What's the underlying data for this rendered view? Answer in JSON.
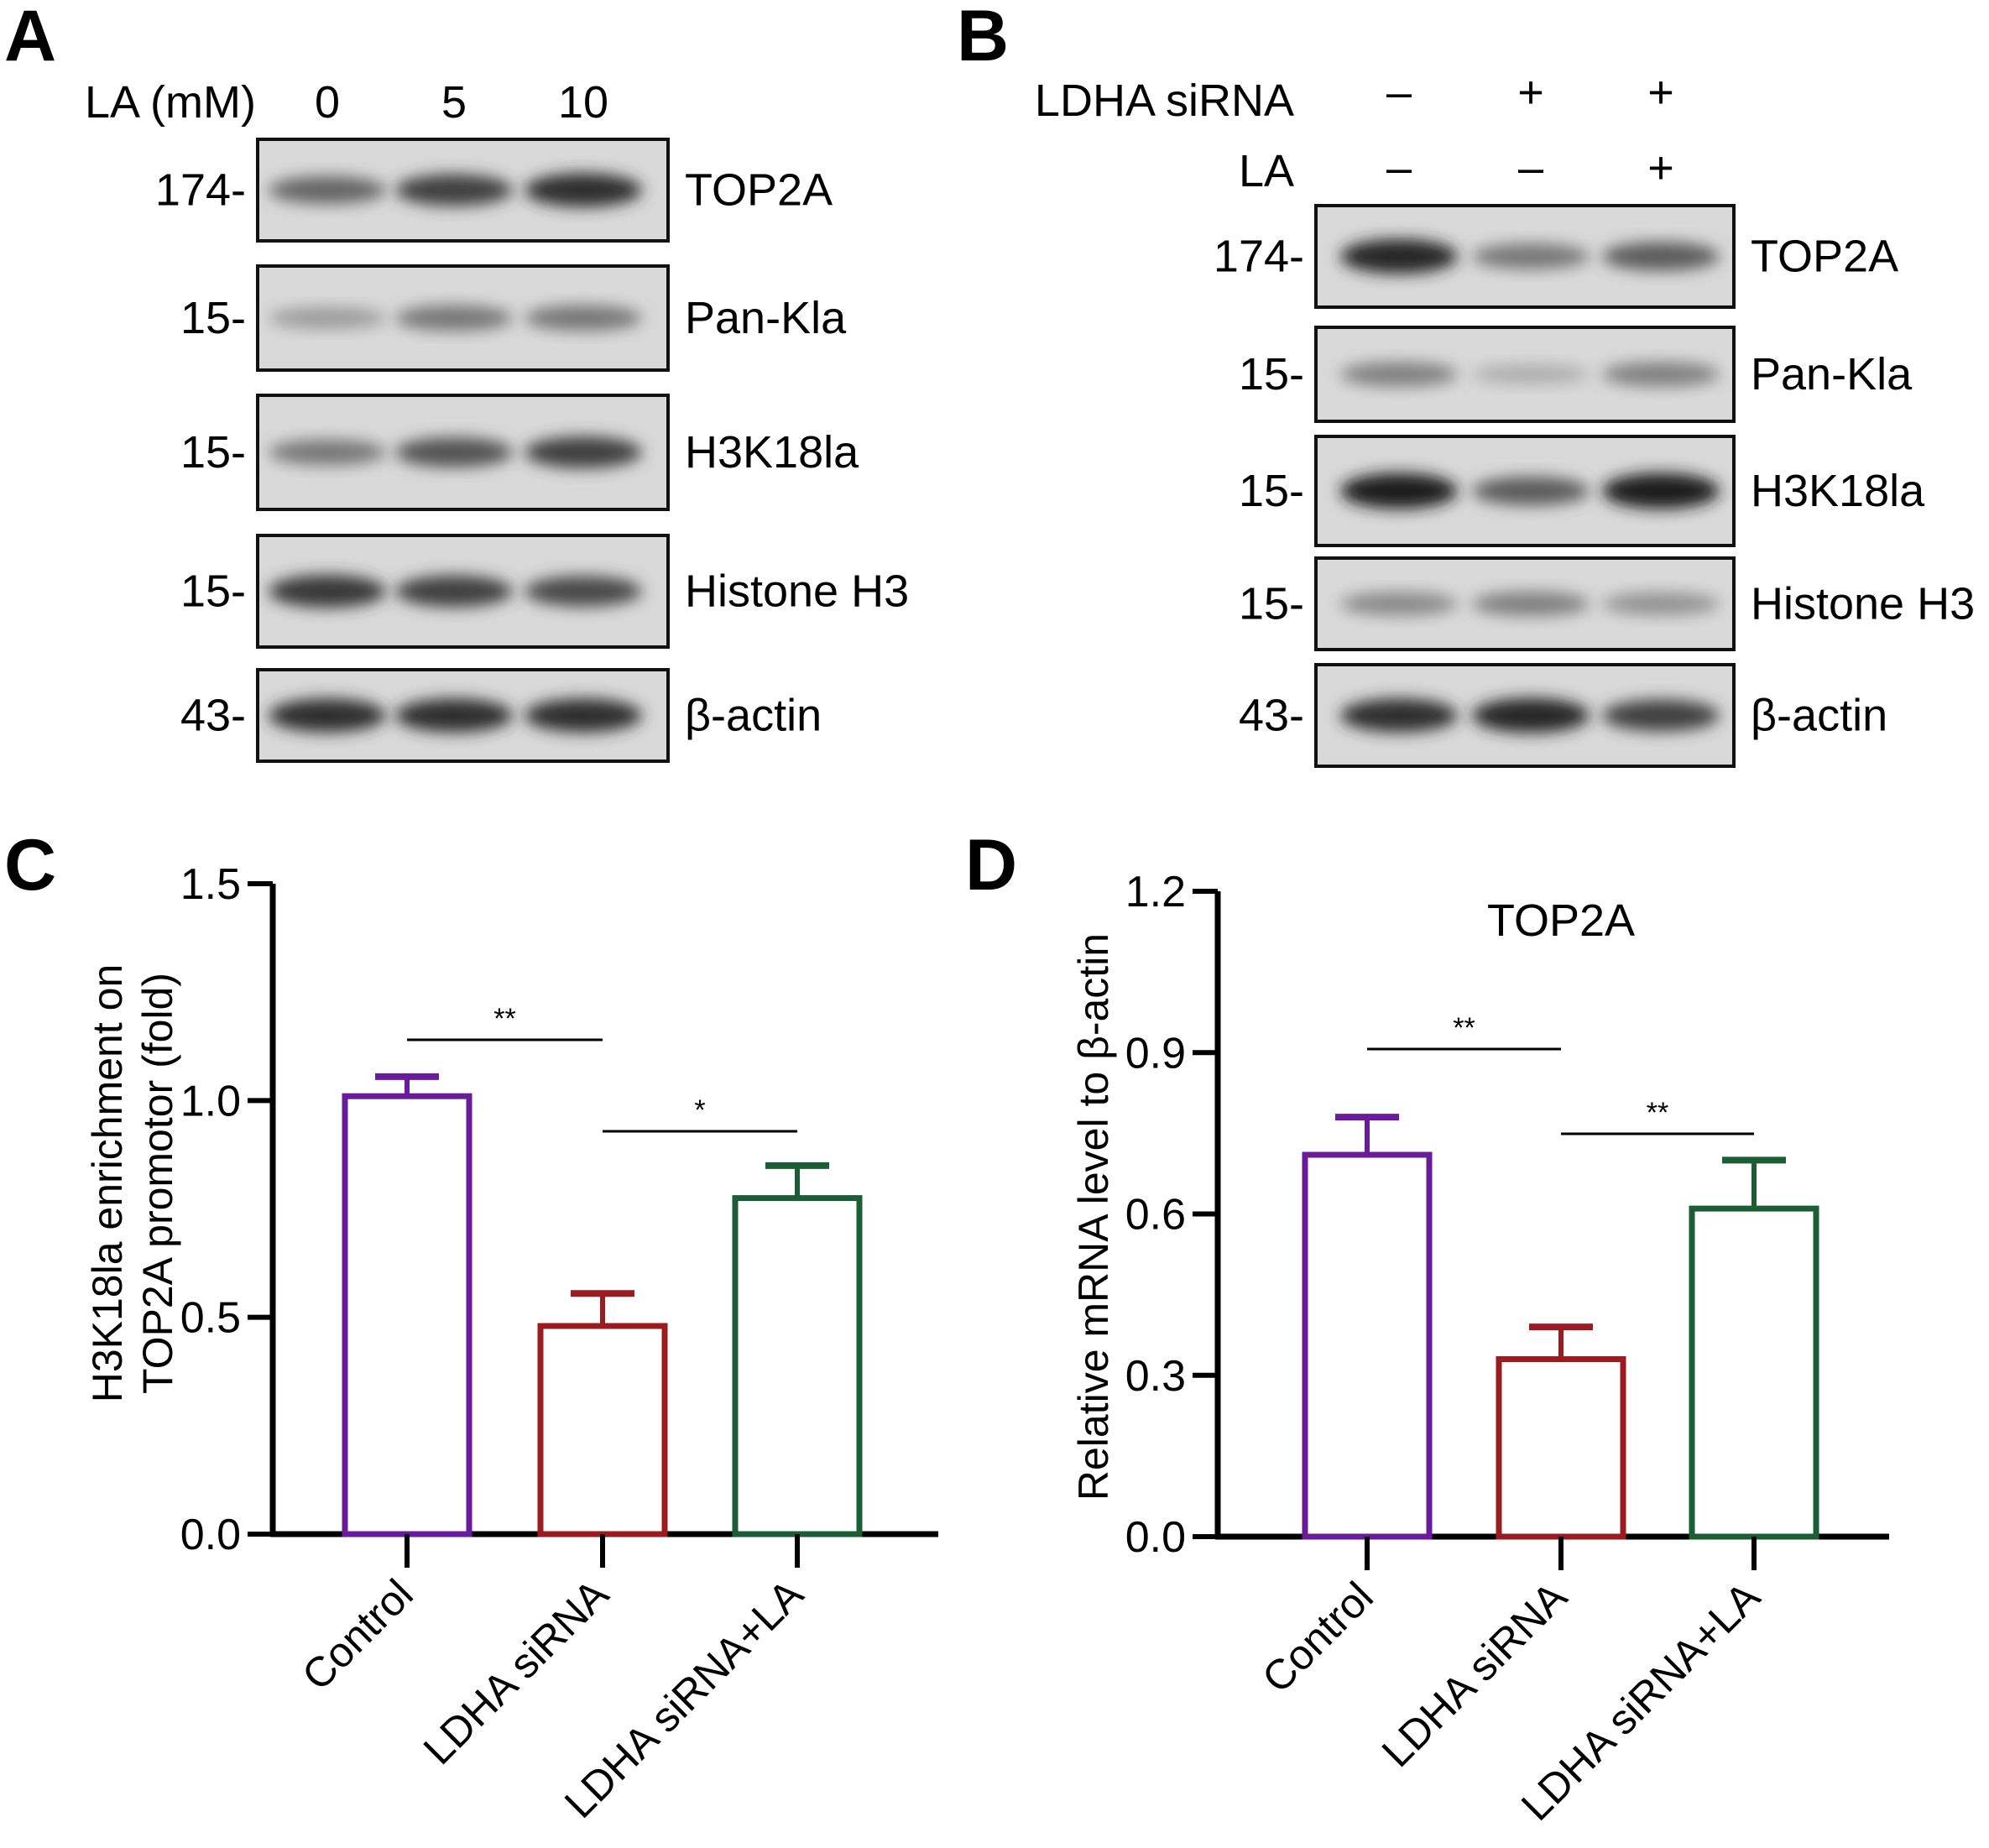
{
  "panels": {
    "a": "A",
    "b": "B",
    "c": "C",
    "d": "D"
  },
  "blot_a": {
    "treatment_label": "LA (mM)",
    "lanes": [
      "0",
      "5",
      "10"
    ],
    "rows": [
      {
        "mw": "174-",
        "protein": "TOP2A",
        "intensity": [
          0.55,
          0.75,
          0.85
        ]
      },
      {
        "mw": "15-",
        "protein": "Pan-Kla",
        "intensity": [
          0.25,
          0.45,
          0.45
        ]
      },
      {
        "mw": "15-",
        "protein": "H3K18la",
        "intensity": [
          0.45,
          0.65,
          0.75
        ]
      },
      {
        "mw": "15-",
        "protein": "Histone H3",
        "intensity": [
          0.8,
          0.75,
          0.7
        ]
      },
      {
        "mw": "43-",
        "protein": "β-actin",
        "intensity": [
          0.85,
          0.85,
          0.85
        ]
      }
    ]
  },
  "blot_b": {
    "treatments": [
      {
        "label": "LDHA siRNA",
        "signs": [
          "–",
          "+",
          "+"
        ]
      },
      {
        "label": "LA",
        "signs": [
          "–",
          "–",
          "+"
        ]
      }
    ],
    "rows": [
      {
        "mw": "174-",
        "protein": "TOP2A",
        "intensity": [
          0.9,
          0.45,
          0.6
        ]
      },
      {
        "mw": "15-",
        "protein": "Pan-Kla",
        "intensity": [
          0.4,
          0.15,
          0.4
        ]
      },
      {
        "mw": "15-",
        "protein": "H3K18la",
        "intensity": [
          0.95,
          0.6,
          0.95
        ]
      },
      {
        "mw": "15-",
        "protein": "Histone H3",
        "intensity": [
          0.35,
          0.4,
          0.3
        ]
      },
      {
        "mw": "43-",
        "protein": "β-actin",
        "intensity": [
          0.85,
          0.9,
          0.75
        ]
      }
    ]
  },
  "chart_data": [
    {
      "type": "bar",
      "title": "",
      "ylabel_lines": [
        "H3K18la enrichment on",
        "TOP2A promotor (fold)"
      ],
      "xlabel": "",
      "categories": [
        "Control",
        "LDHA siRNA",
        "LDHA siRNA+LA"
      ],
      "values": [
        1.01,
        0.48,
        0.775
      ],
      "errors": [
        0.045,
        0.075,
        0.075
      ],
      "colors": [
        "#6a1b9a",
        "#9b1c20",
        "#1b5e35"
      ],
      "ylim": [
        0,
        1.5
      ],
      "yticks": [
        "0.0",
        "0.5",
        "1.0",
        "1.5"
      ],
      "significance": [
        {
          "from": 0,
          "to": 1,
          "label": "**"
        },
        {
          "from": 1,
          "to": 2,
          "label": "*"
        }
      ]
    },
    {
      "type": "bar",
      "title": "TOP2A",
      "ylabel_lines": [
        "Relative mRNA level to β-actin"
      ],
      "xlabel": "",
      "categories": [
        "Control",
        "LDHA siRNA",
        "LDHA siRNA+LA"
      ],
      "values": [
        0.71,
        0.33,
        0.61
      ],
      "errors": [
        0.07,
        0.06,
        0.09
      ],
      "colors": [
        "#6a1b9a",
        "#9b1c20",
        "#1b5e35"
      ],
      "ylim": [
        0,
        1.2
      ],
      "yticks": [
        "0.0",
        "0.3",
        "0.6",
        "0.9",
        "1.2"
      ],
      "significance": [
        {
          "from": 0,
          "to": 1,
          "label": "**"
        },
        {
          "from": 1,
          "to": 2,
          "label": "**"
        }
      ]
    }
  ]
}
